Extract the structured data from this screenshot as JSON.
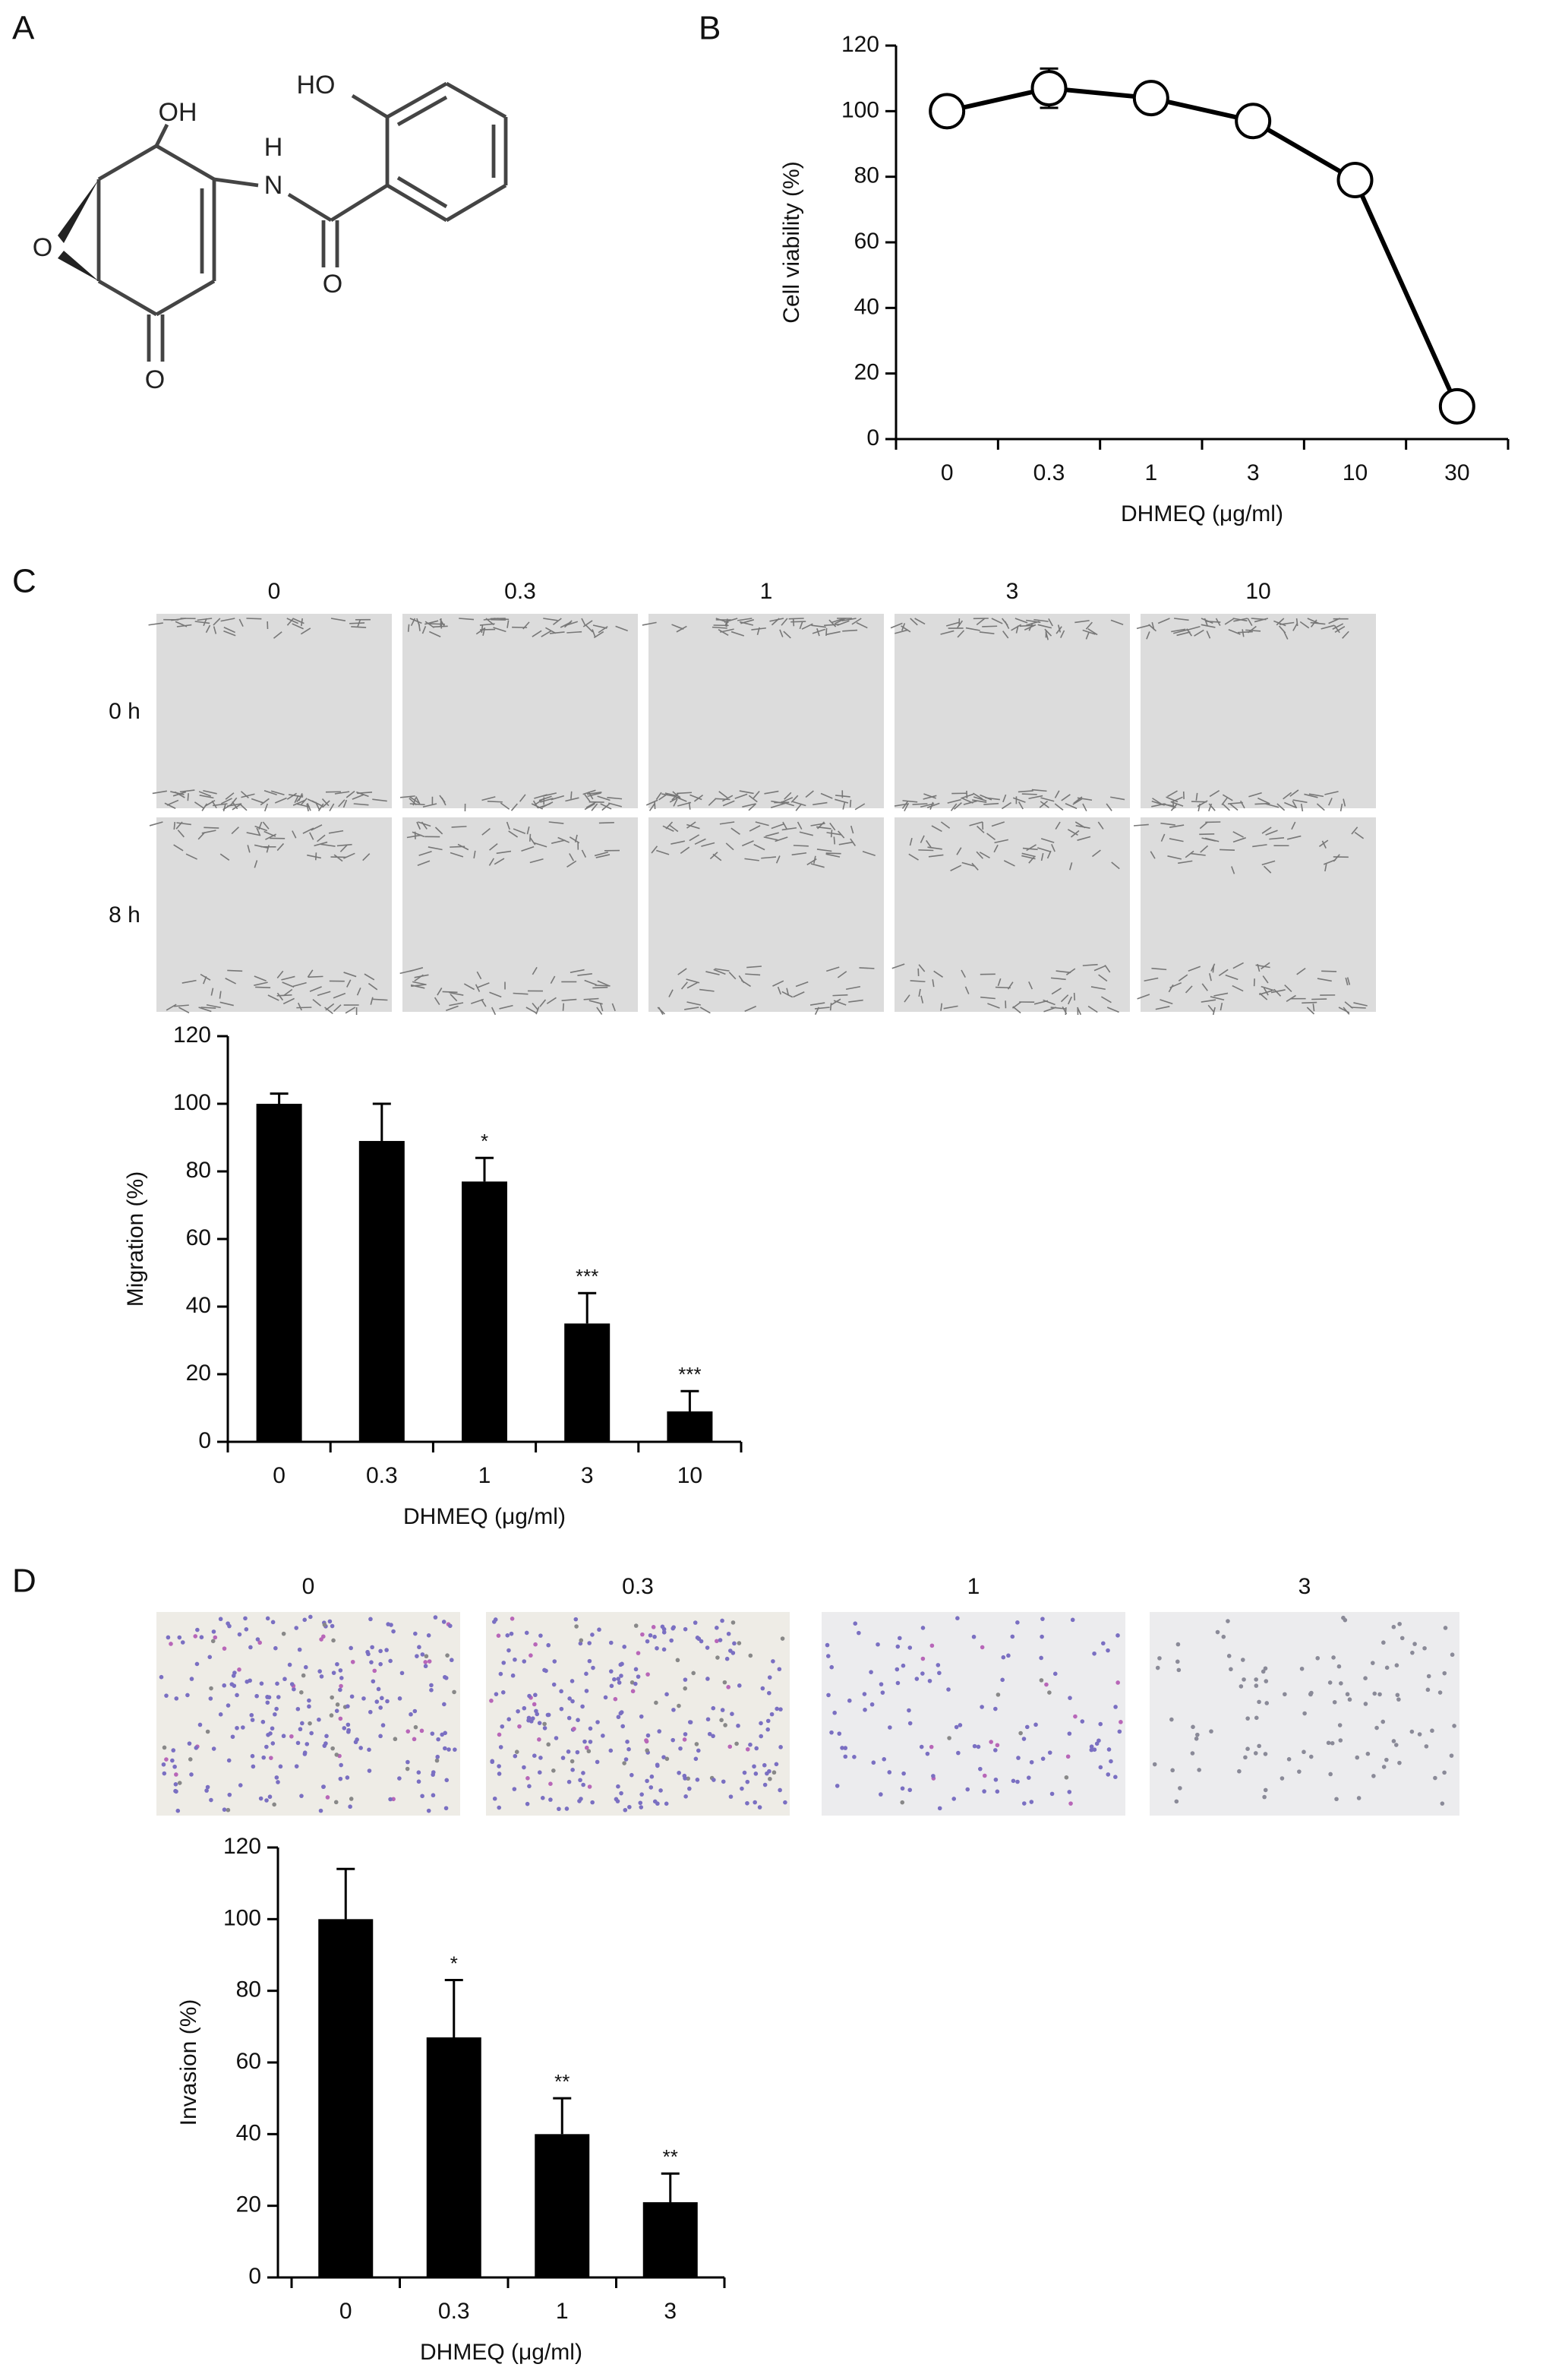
{
  "panels": [
    "A",
    "B",
    "C",
    "D"
  ],
  "structure": {
    "atoms": [
      "OH",
      "HO",
      "H",
      "N",
      "O",
      "O",
      "O"
    ]
  },
  "micrographs": {
    "migration": {
      "columns": [
        "0",
        "0.3",
        "1",
        "3",
        "10"
      ],
      "rows": [
        "0 h",
        "8 h"
      ]
    },
    "invasion": {
      "columns": [
        "0",
        "0.3",
        "1",
        "3"
      ]
    }
  },
  "chart_data": [
    {
      "type": "line",
      "xlabel": "DHMEQ (μg/ml)",
      "ylabel": "Cell viability (%)",
      "categories": [
        "0",
        "0.3",
        "1",
        "3",
        "10",
        "30"
      ],
      "values": [
        100,
        107,
        104,
        97,
        79,
        10
      ],
      "errors": [
        null,
        6,
        null,
        null,
        null,
        null
      ],
      "color": "#000000",
      "ylim": [
        0,
        120
      ],
      "yticks": [
        0,
        20,
        40,
        60,
        80,
        100,
        120
      ]
    },
    {
      "type": "bar",
      "xlabel": "DHMEQ (μg/ml)",
      "ylabel": "Migration (%)",
      "categories": [
        "0",
        "0.3",
        "1",
        "3",
        "10"
      ],
      "values": [
        100,
        89,
        77,
        35,
        9
      ],
      "errors": [
        3,
        11,
        7,
        9,
        6
      ],
      "annotations": [
        null,
        null,
        "*",
        "***",
        "***"
      ],
      "color": "#000000",
      "ylim": [
        0,
        120
      ],
      "yticks": [
        0,
        20,
        40,
        60,
        80,
        100,
        120
      ]
    },
    {
      "type": "bar",
      "xlabel": "DHMEQ (μg/ml)",
      "ylabel": "Invasion (%)",
      "categories": [
        "0",
        "0.3",
        "1",
        "3"
      ],
      "values": [
        100,
        67,
        40,
        21
      ],
      "errors": [
        14,
        16,
        10,
        8
      ],
      "annotations": [
        null,
        "*",
        "**",
        "**"
      ],
      "color": "#000000",
      "ylim": [
        0,
        120
      ],
      "yticks": [
        0,
        20,
        40,
        60,
        80,
        100,
        120
      ]
    }
  ]
}
